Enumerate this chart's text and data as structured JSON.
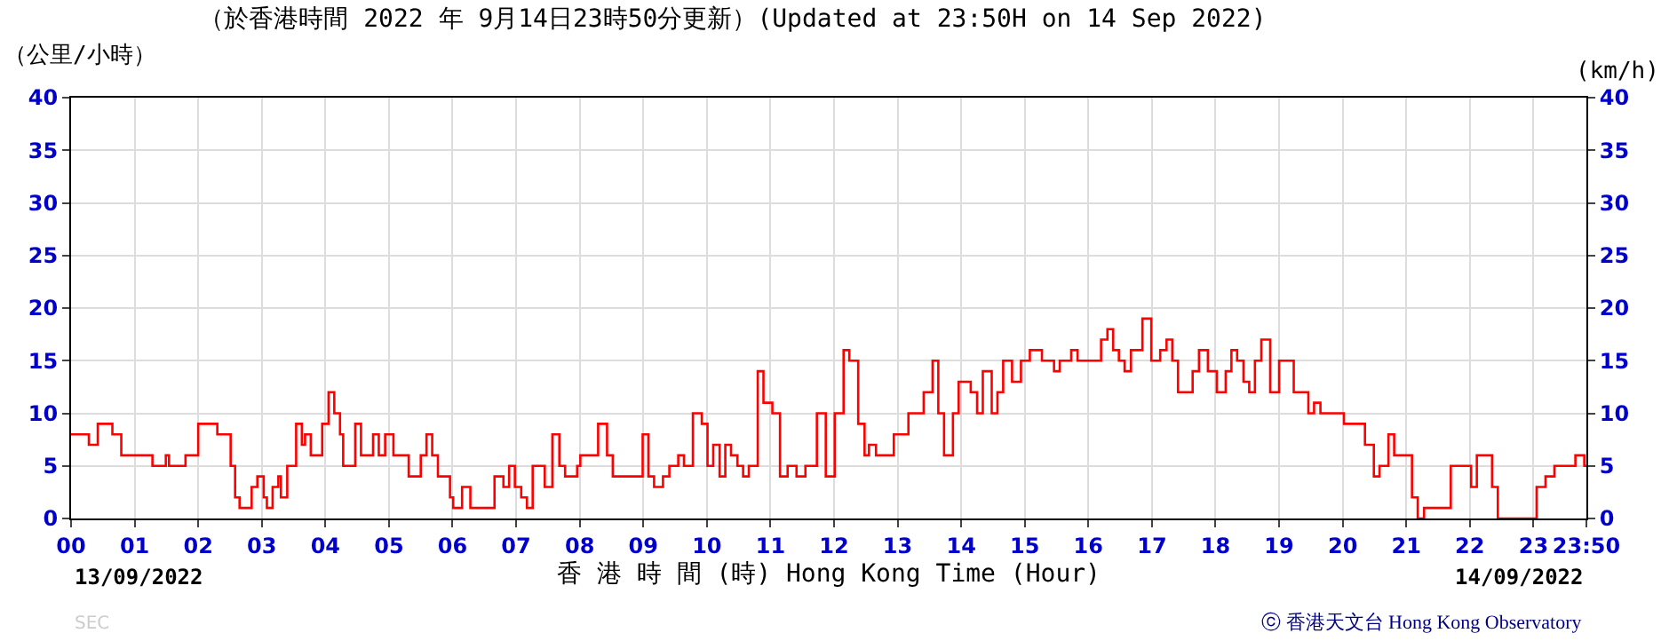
{
  "chart_data": {
    "type": "step",
    "title": "（於香港時間 2022 年 9月14日23時50分更新）(Updated at 23:50H on 14 Sep 2022)",
    "xlabel": "香 港 時 間 (時) Hong Kong Time (Hour)",
    "ylabel": "（公里/小時）",
    "y2label": "(km/h)",
    "annotations": [
      "13/09/2022",
      "14/09/2022",
      "SEC",
      "ⓒ 香港天文台 Hong Kong Observatory"
    ],
    "series": [
      {
        "color": "#ff0000",
        "x": [
          0,
          0.28,
          0.42,
          0.65,
          0.79,
          1.28,
          1.49,
          1.54,
          1.8,
          2.0,
          2.3,
          2.51,
          2.58,
          2.65,
          2.84,
          2.93,
          3.03,
          3.08,
          3.17,
          3.26,
          3.3,
          3.4,
          3.54,
          3.63,
          3.68,
          3.77,
          3.95,
          4.05,
          4.14,
          4.23,
          4.28,
          4.47,
          4.56,
          4.75,
          4.84,
          4.94,
          5.07,
          5.31,
          5.5,
          5.59,
          5.68,
          5.77,
          5.96,
          6.01,
          6.15,
          6.28,
          6.66,
          6.8,
          6.89,
          6.98,
          7.08,
          7.17,
          7.26,
          7.45,
          7.57,
          7.68,
          7.77,
          7.96,
          8.01,
          8.29,
          8.43,
          8.52,
          8.99,
          9.08,
          9.17,
          9.31,
          9.41,
          9.55,
          9.64,
          9.78,
          9.92,
          10.01,
          10.1,
          10.2,
          10.29,
          10.38,
          10.48,
          10.57,
          10.66,
          10.8,
          10.89,
          11.03,
          11.15,
          11.27,
          11.41,
          11.55,
          11.73,
          11.87,
          12.01,
          12.15,
          12.24,
          12.38,
          12.48,
          12.55,
          12.66,
          12.94,
          13.17,
          13.41,
          13.55,
          13.64,
          13.73,
          13.87,
          13.96,
          14.15,
          14.25,
          14.34,
          14.48,
          14.57,
          14.66,
          14.8,
          14.94,
          15.08,
          15.27,
          15.46,
          15.55,
          15.73,
          15.83,
          16.2,
          16.3,
          16.39,
          16.48,
          16.57,
          16.67,
          16.85,
          16.99,
          17.13,
          17.23,
          17.32,
          17.41,
          17.64,
          17.74,
          17.88,
          18.02,
          18.16,
          18.25,
          18.34,
          18.44,
          18.53,
          18.62,
          18.72,
          18.86,
          19.0,
          19.23,
          19.46,
          19.55,
          19.65,
          20.02,
          20.35,
          20.49,
          20.58,
          20.72,
          20.81,
          21.09,
          21.18,
          21.28,
          21.7,
          22.02,
          22.11,
          22.35,
          22.44,
          23.05,
          23.19,
          23.33,
          23.66,
          23.8,
          23.833
        ],
        "values": [
          8,
          7,
          9,
          8,
          6,
          5,
          6,
          5,
          6,
          9,
          8,
          5,
          2,
          1,
          3,
          4,
          2,
          1,
          3,
          4,
          2,
          5,
          9,
          7,
          8,
          6,
          9,
          12,
          10,
          8,
          5,
          9,
          6,
          8,
          6,
          8,
          6,
          4,
          6,
          8,
          6,
          4,
          2,
          1,
          3,
          1,
          4,
          3,
          5,
          3,
          2,
          1,
          5,
          3,
          8,
          5,
          4,
          5,
          6,
          9,
          6,
          4,
          8,
          4,
          3,
          4,
          5,
          6,
          5,
          10,
          9,
          5,
          7,
          4,
          7,
          6,
          5,
          4,
          5,
          14,
          11,
          10,
          4,
          5,
          4,
          5,
          10,
          4,
          10,
          16,
          15,
          9,
          6,
          7,
          6,
          8,
          10,
          12,
          15,
          10,
          6,
          10,
          13,
          12,
          10,
          14,
          10,
          12,
          15,
          13,
          15,
          16,
          15,
          14,
          15,
          16,
          15,
          17,
          18,
          16,
          15,
          14,
          16,
          19,
          15,
          16,
          17,
          15,
          12,
          14,
          16,
          14,
          12,
          14,
          16,
          15,
          13,
          12,
          15,
          17,
          12,
          15,
          12,
          10,
          11,
          10,
          9,
          7,
          4,
          5,
          8,
          6,
          2,
          0,
          1,
          5,
          3,
          6,
          3,
          0,
          3,
          4,
          5,
          6,
          5,
          5
        ]
      }
    ],
    "xlim": [
      0,
      23.833
    ],
    "xticks": [
      {
        "value": 0,
        "label": "00"
      },
      {
        "value": 1,
        "label": "01"
      },
      {
        "value": 2,
        "label": "02"
      },
      {
        "value": 3,
        "label": "03"
      },
      {
        "value": 4,
        "label": "04"
      },
      {
        "value": 5,
        "label": "05"
      },
      {
        "value": 6,
        "label": "06"
      },
      {
        "value": 7,
        "label": "07"
      },
      {
        "value": 8,
        "label": "08"
      },
      {
        "value": 9,
        "label": "09"
      },
      10,
      11,
      12,
      13,
      14,
      15,
      16,
      17,
      18,
      19,
      20,
      21,
      22,
      23,
      {
        "value": 23.833,
        "label": "23:50"
      }
    ],
    "ylim": [
      0,
      40
    ],
    "yticks": [
      0,
      5,
      10,
      15,
      20,
      25,
      30,
      35,
      40
    ],
    "y2lim": [
      0,
      40
    ],
    "y2ticks": [
      0,
      5,
      10,
      15,
      20,
      25,
      30,
      35,
      40
    ],
    "grid": true,
    "marker": "none",
    "line_style": "solid"
  }
}
